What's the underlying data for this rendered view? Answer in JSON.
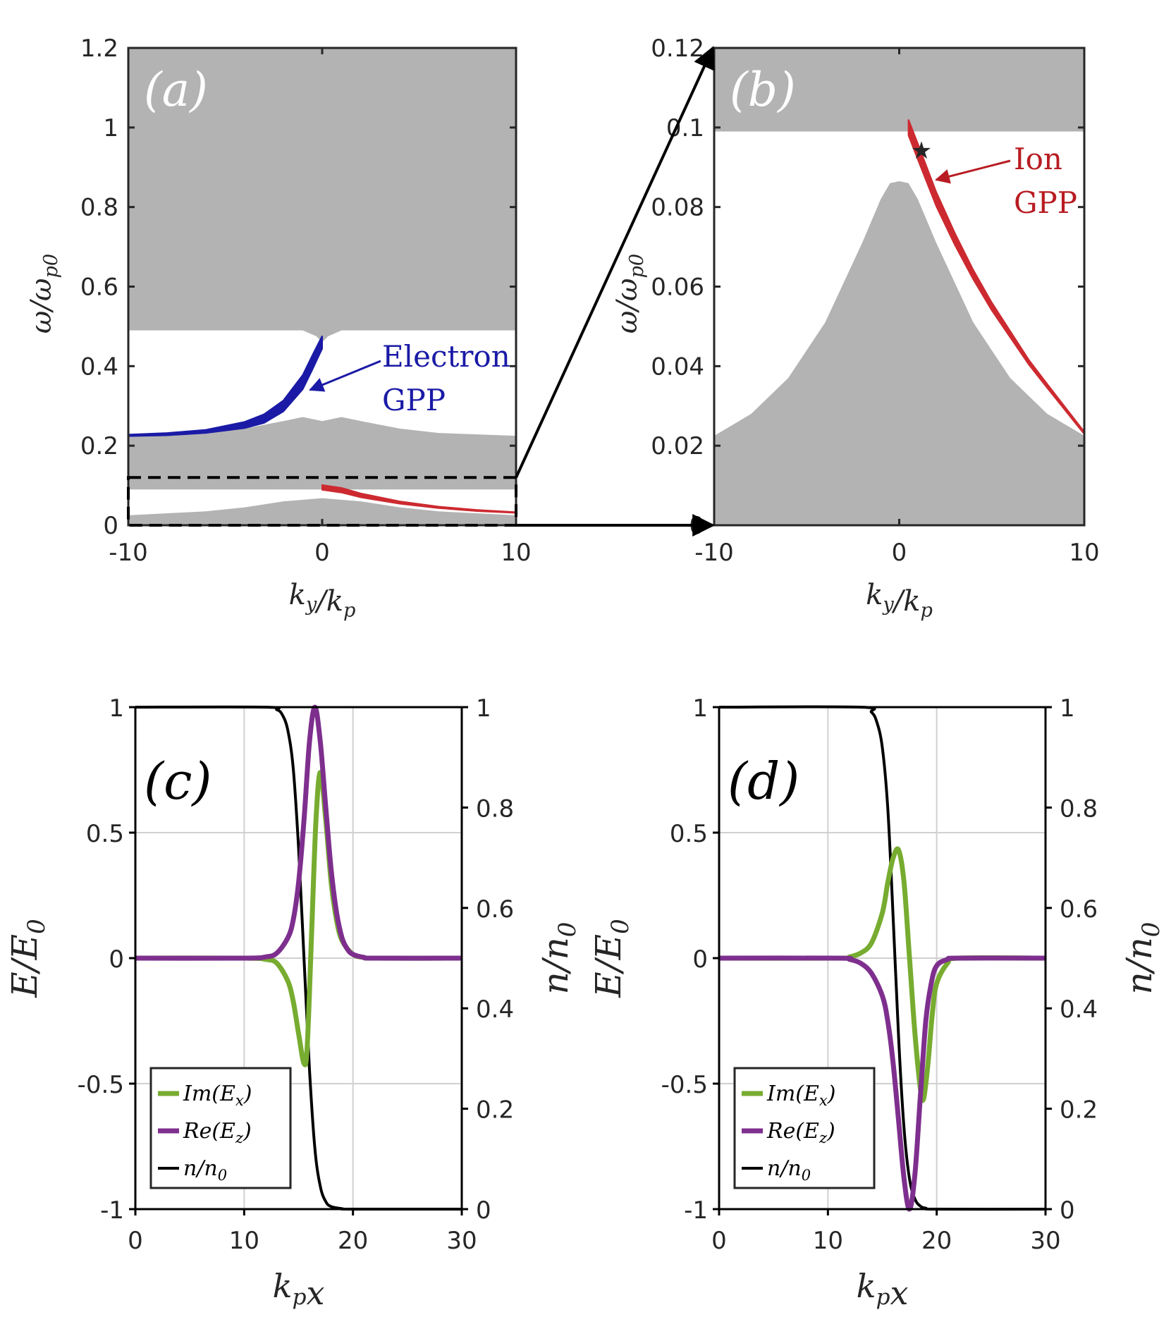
{
  "chart_data": [
    {
      "panel": "a",
      "type": "area",
      "label": "(a)",
      "xlabel": "k_y/k_p",
      "ylabel": "ω/ω_p0",
      "xlim": [
        -10,
        10
      ],
      "ylim": [
        0,
        1.2
      ],
      "xticks": [
        "-10",
        "0",
        "10"
      ],
      "yticks": [
        "0",
        "0.2",
        "0.4",
        "0.6",
        "0.8",
        "1",
        "1.2"
      ],
      "annotations": [
        {
          "text1": "Electron",
          "text2": "GPP",
          "color": "#1a1aa6"
        }
      ],
      "series": [
        {
          "name": "upper continuum",
          "color": "#b3b3b3",
          "x": [
            -10,
            -1,
            -0.3,
            0,
            0.3,
            1,
            10
          ],
          "lower": [
            0.49,
            0.49,
            0.475,
            0.46,
            0.475,
            0.49,
            0.49
          ],
          "upper": [
            1.2,
            1.2,
            1.2,
            1.2,
            1.2,
            1.2,
            1.2
          ]
        },
        {
          "name": "middle continuum",
          "color": "#b3b3b3",
          "x": [
            -10,
            -6,
            -4,
            -2,
            -1,
            0,
            1,
            2,
            4,
            6,
            10
          ],
          "lower": [
            0.09,
            0.09,
            0.09,
            0.09,
            0.09,
            0.09,
            0.09,
            0.09,
            0.09,
            0.09,
            0.09
          ],
          "upper": [
            0.225,
            0.232,
            0.243,
            0.262,
            0.272,
            0.262,
            0.272,
            0.262,
            0.243,
            0.232,
            0.225
          ]
        },
        {
          "name": "lower continuum",
          "color": "#b3b3b3",
          "x": [
            -10,
            -6,
            -4,
            -2,
            0,
            2,
            4,
            6,
            10
          ],
          "lower": [
            0,
            0,
            0,
            0,
            0,
            0,
            0,
            0,
            0
          ],
          "upper": [
            0.025,
            0.035,
            0.045,
            0.06,
            0.068,
            0.06,
            0.045,
            0.035,
            0.025
          ]
        },
        {
          "name": "Electron GPP",
          "color": "#1a1aa6",
          "x": [
            -10,
            -8,
            -6,
            -4,
            -3,
            -2,
            -1,
            -0.5,
            0
          ],
          "y": [
            0.226,
            0.229,
            0.236,
            0.252,
            0.268,
            0.3,
            0.36,
            0.41,
            0.46
          ],
          "width": [
            0.002,
            0.003,
            0.004,
            0.008,
            0.011,
            0.014,
            0.018,
            0.018,
            0.016
          ]
        },
        {
          "name": "Ion GPP",
          "color": "#cc2a30",
          "x": [
            0,
            1,
            2,
            4,
            6,
            8,
            10
          ],
          "y": [
            0.095,
            0.088,
            0.075,
            0.057,
            0.045,
            0.037,
            0.032
          ],
          "width": [
            0.006,
            0.006,
            0.005,
            0.003,
            0.002,
            0.0015,
            0.001
          ]
        }
      ]
    },
    {
      "panel": "b",
      "type": "area",
      "label": "(b)",
      "xlabel": "k_y/k_p",
      "ylabel": "ω/ω_p0",
      "xlim": [
        -10,
        10
      ],
      "ylim": [
        0,
        0.12
      ],
      "xticks": [
        "-10",
        "0",
        "10"
      ],
      "yticks": [
        "0",
        "0.02",
        "0.04",
        "0.06",
        "0.08",
        "0.1",
        "0.12"
      ],
      "annotations": [
        {
          "text1": "Ion",
          "text2": "GPP",
          "color": "#b81c22"
        }
      ],
      "marker": {
        "symbol": "★",
        "x": 1.2,
        "y": 0.095
      },
      "series": [
        {
          "name": "upper continuum",
          "color": "#b3b3b3",
          "x": [
            -10,
            10
          ],
          "lower": [
            0.099,
            0.099
          ],
          "upper": [
            0.12,
            0.12
          ]
        },
        {
          "name": "lower continuum",
          "color": "#b3b3b3",
          "x": [
            -10,
            -8,
            -6,
            -4,
            -2,
            -1,
            -0.5,
            0,
            0.5,
            1,
            2,
            4,
            6,
            8,
            10
          ],
          "lower": [
            0,
            0,
            0,
            0,
            0,
            0,
            0,
            0,
            0,
            0,
            0,
            0,
            0,
            0,
            0
          ],
          "upper": [
            0.0225,
            0.028,
            0.037,
            0.051,
            0.071,
            0.082,
            0.086,
            0.0865,
            0.086,
            0.082,
            0.071,
            0.051,
            0.037,
            0.028,
            0.0225
          ]
        },
        {
          "name": "Ion GPP",
          "color": "#cc2a30",
          "x": [
            0.5,
            1,
            1.5,
            2,
            3,
            4,
            5,
            6,
            7,
            8,
            10
          ],
          "y": [
            0.1,
            0.094,
            0.088,
            0.082,
            0.072,
            0.063,
            0.055,
            0.048,
            0.041,
            0.035,
            0.0232
          ],
          "width": [
            0.002,
            0.002,
            0.0019,
            0.0018,
            0.0015,
            0.0012,
            0.001,
            0.0008,
            0.0006,
            0.0005,
            0.0003
          ]
        }
      ]
    },
    {
      "panel": "c",
      "type": "line",
      "label": "(c)",
      "xlabel": "k_p x",
      "ylabel": "E/E_0",
      "ylabel_right": "n/n_0",
      "xlim": [
        0,
        30
      ],
      "ylim": [
        -1,
        1
      ],
      "ylim_right": [
        0,
        1
      ],
      "xticks": [
        "0",
        "10",
        "20",
        "30"
      ],
      "yticks": [
        "-1",
        "-0.5",
        "0",
        "0.5",
        "1"
      ],
      "yticks_right": [
        "0",
        "0.2",
        "0.4",
        "0.6",
        "0.8",
        "1"
      ],
      "legend": [
        "Im(E_x)",
        "Re(E_z)",
        "n/n_0"
      ],
      "series": [
        {
          "name": "Im(E_x)",
          "color": "#77ac30",
          "x": [
            0,
            10,
            12,
            13,
            14,
            14.5,
            15,
            15.5,
            15.8,
            16.2,
            16.6,
            17,
            17.5,
            18,
            18.5,
            19,
            20,
            21,
            22,
            30
          ],
          "y": [
            0,
            0,
            -0.005,
            -0.02,
            -0.09,
            -0.17,
            -0.3,
            -0.42,
            -0.35,
            0.1,
            0.55,
            0.74,
            0.55,
            0.3,
            0.15,
            0.07,
            0.015,
            0.003,
            0,
            0
          ]
        },
        {
          "name": "Re(E_z)",
          "color": "#7e2f8e",
          "x": [
            0,
            10,
            12,
            13,
            14,
            14.5,
            15,
            15.5,
            16,
            16.5,
            17,
            17.5,
            18,
            18.5,
            19,
            19.5,
            20,
            21,
            22,
            30
          ],
          "y": [
            0,
            0,
            0.005,
            0.02,
            0.08,
            0.15,
            0.3,
            0.55,
            0.86,
            1,
            0.86,
            0.6,
            0.35,
            0.18,
            0.08,
            0.035,
            0.015,
            0.003,
            0,
            0
          ]
        },
        {
          "name": "n/n_0",
          "color": "#000000",
          "axis": "right",
          "x": [
            0,
            12,
            13,
            13.5,
            14,
            14.5,
            15,
            15.5,
            16,
            16.5,
            17,
            17.5,
            18,
            19,
            20,
            30
          ],
          "y": [
            1,
            1,
            0.995,
            0.985,
            0.955,
            0.88,
            0.72,
            0.5,
            0.28,
            0.12,
            0.045,
            0.015,
            0.005,
            0.001,
            0,
            0
          ]
        }
      ]
    },
    {
      "panel": "d",
      "type": "line",
      "label": "(d)",
      "xlabel": "k_p x",
      "ylabel": "E/E_0",
      "ylabel_right": "n/n_0",
      "xlim": [
        0,
        30
      ],
      "ylim": [
        -1,
        1
      ],
      "ylim_right": [
        0,
        1
      ],
      "xticks": [
        "0",
        "10",
        "20",
        "30"
      ],
      "yticks": [
        "-1",
        "-0.5",
        "0",
        "0.5",
        "1"
      ],
      "yticks_right": [
        "0",
        "0.2",
        "0.4",
        "0.6",
        "0.8",
        "1"
      ],
      "legend": [
        "Im(E_x)",
        "Re(E_z)",
        "n/n_0"
      ],
      "series": [
        {
          "name": "Im(E_x)",
          "color": "#77ac30",
          "x": [
            0,
            11,
            12,
            13,
            14,
            15,
            15.5,
            16,
            16.5,
            17,
            17.5,
            18,
            18.5,
            18.8,
            19.2,
            19.6,
            20,
            21,
            22,
            30
          ],
          "y": [
            0,
            0,
            0.005,
            0.02,
            0.06,
            0.18,
            0.3,
            0.4,
            0.43,
            0.3,
            0.0,
            -0.3,
            -0.52,
            -0.56,
            -0.42,
            -0.22,
            -0.1,
            -0.02,
            0,
            0
          ]
        },
        {
          "name": "Re(E_z)",
          "color": "#7e2f8e",
          "x": [
            0,
            11,
            12,
            13,
            14,
            15,
            15.5,
            16,
            16.5,
            17,
            17.5,
            18,
            18.5,
            19,
            19.5,
            20,
            21,
            22,
            30
          ],
          "y": [
            0,
            0,
            -0.005,
            -0.02,
            -0.06,
            -0.15,
            -0.25,
            -0.42,
            -0.65,
            -0.88,
            -1,
            -0.86,
            -0.55,
            -0.25,
            -0.1,
            -0.03,
            -0.005,
            0,
            0
          ]
        },
        {
          "name": "n/n_0",
          "color": "#000000",
          "axis": "right",
          "x": [
            0,
            13,
            14,
            14.5,
            15,
            15.5,
            16,
            16.5,
            17,
            17.5,
            18,
            18.5,
            19,
            20,
            30
          ],
          "y": [
            1,
            1,
            0.99,
            0.97,
            0.92,
            0.8,
            0.58,
            0.34,
            0.16,
            0.06,
            0.02,
            0.006,
            0.002,
            0,
            0
          ]
        }
      ]
    }
  ]
}
